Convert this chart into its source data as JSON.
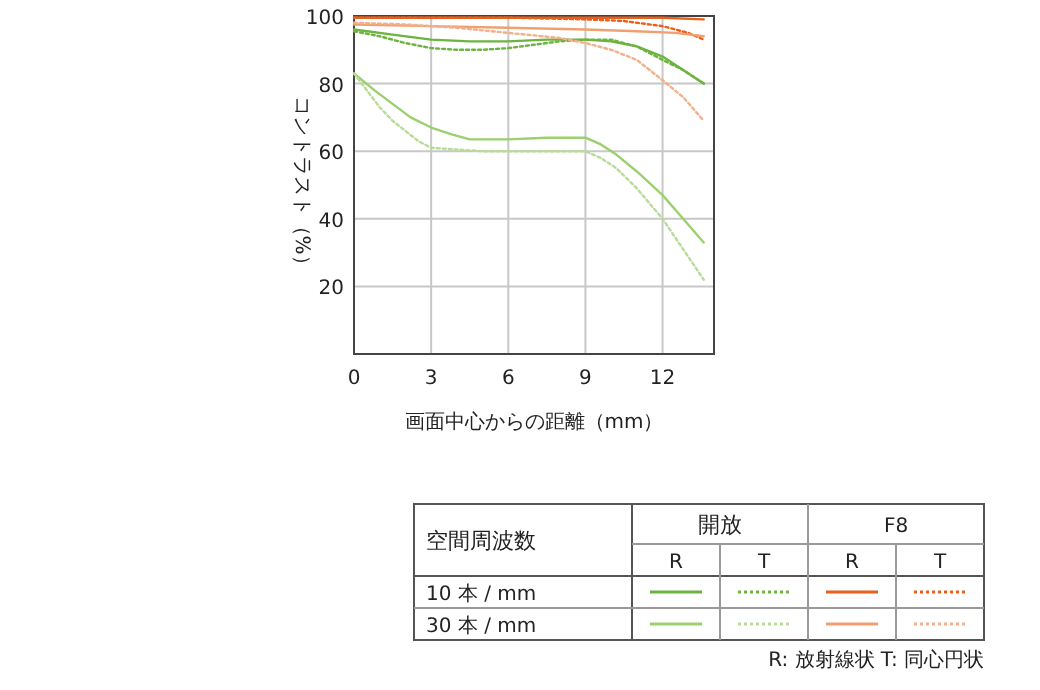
{
  "chart_data": {
    "type": "line",
    "xlabel": "画面中心からの距離（mm）",
    "ylabel": "コントラスト（%）",
    "legend_title": "空間周波数",
    "xlim": [
      0,
      14
    ],
    "ylim": [
      0,
      100
    ],
    "xticks": [
      0,
      3,
      6,
      9,
      12
    ],
    "yticks": [
      {
        "value": 0,
        "label": null
      },
      20,
      40,
      60,
      80,
      100
    ],
    "grid": true,
    "marker": "none",
    "series": [
      {
        "color": "#6db33f",
        "line_style": "solid",
        "x": [
          0,
          1.5,
          3,
          4.5,
          6,
          7.5,
          9,
          10,
          11,
          12,
          12.8,
          13.6
        ],
        "values": [
          96,
          94.5,
          93,
          92.5,
          92.5,
          93,
          93,
          92.5,
          91,
          88,
          84,
          80
        ]
      },
      {
        "color": "#6db33f",
        "line_style": "dotted",
        "x": [
          0,
          1,
          2,
          3,
          4,
          5,
          6,
          7,
          8,
          9,
          10,
          11,
          12,
          12.8,
          13.6
        ],
        "values": [
          95.5,
          94,
          92,
          90.5,
          90,
          90,
          90.5,
          91.5,
          92.5,
          93,
          93,
          91,
          87,
          84,
          80
        ]
      },
      {
        "color": "#e8601c",
        "line_style": "solid",
        "x": [
          0,
          3,
          6,
          9,
          12,
          13.6
        ],
        "values": [
          99.5,
          99.5,
          99.5,
          99.5,
          99.5,
          99
        ]
      },
      {
        "color": "#e8601c",
        "line_style": "dotted",
        "x": [
          0,
          3,
          6,
          9,
          10.5,
          12,
          13,
          13.6
        ],
        "values": [
          99.5,
          99.5,
          99.5,
          99,
          98.5,
          97,
          95,
          93
        ]
      },
      {
        "color": "#9ccf6e",
        "line_style": "solid",
        "x": [
          0,
          0.8,
          1.5,
          2.2,
          3,
          3.8,
          4.5,
          6,
          7.5,
          8.5,
          9,
          9.6,
          10.2,
          11,
          12,
          12.8,
          13.6
        ],
        "values": [
          83,
          78,
          74,
          70,
          67,
          65,
          63.5,
          63.5,
          64,
          64,
          64,
          62,
          59,
          54,
          47,
          40,
          33
        ]
      },
      {
        "color": "#b8dc98",
        "line_style": "dotted",
        "x": [
          0,
          0.5,
          1,
          1.5,
          2,
          2.5,
          3,
          4,
          5,
          6,
          7.5,
          9,
          9.6,
          10.2,
          11,
          12,
          12.8,
          13.6
        ],
        "values": [
          83,
          78,
          73,
          69,
          66,
          63,
          61,
          60.5,
          60,
          60,
          60,
          60,
          58,
          55,
          49,
          40,
          31,
          22
        ]
      },
      {
        "color": "#f0a070",
        "line_style": "solid",
        "x": [
          0,
          3,
          6,
          9,
          11,
          12.5,
          13.6
        ],
        "values": [
          97.5,
          97,
          96.5,
          96,
          95.5,
          95,
          94
        ]
      },
      {
        "color": "#f3b08a",
        "line_style": "dotted",
        "x": [
          0,
          2,
          4,
          6,
          8,
          9,
          10,
          11,
          12,
          12.8,
          13.6
        ],
        "values": [
          98,
          97.5,
          96.5,
          95,
          93.5,
          92,
          90,
          87,
          81,
          76,
          69
        ]
      }
    ],
    "annotations": [
      "開放",
      "F8",
      "R",
      "T",
      "R",
      "T",
      "10 本 / mm",
      "30 本 / mm",
      "R: 放射線状  T: 同心円状"
    ]
  }
}
